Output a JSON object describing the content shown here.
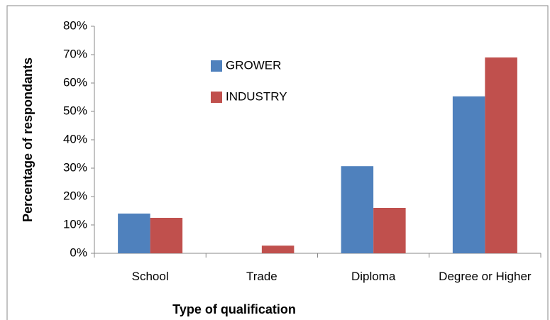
{
  "chart_data": {
    "type": "bar",
    "xlabel": "Type of qualification",
    "ylabel": "Percentage of respondants",
    "categories": [
      "School",
      "Trade",
      "Diploma",
      "Degree or Higher"
    ],
    "series": [
      {
        "name": "GROWER",
        "color": "#4f81bd",
        "values": [
          14,
          0,
          30.7,
          55.3
        ]
      },
      {
        "name": "INDUSTRY",
        "color": "#c0504d",
        "values": [
          12.5,
          2.7,
          16,
          69
        ]
      }
    ],
    "ylim": [
      0,
      80
    ],
    "yticks": [
      {
        "value": 0,
        "label": "0%"
      },
      {
        "value": 10,
        "label": "10%"
      },
      {
        "value": 20,
        "label": "20%"
      },
      {
        "value": 30,
        "label": "30%"
      },
      {
        "value": 40,
        "label": "40%"
      },
      {
        "value": 50,
        "label": "50%"
      },
      {
        "value": 60,
        "label": "60%"
      },
      {
        "value": 70,
        "label": "70%"
      },
      {
        "value": 80,
        "label": "80%"
      }
    ],
    "legend": "top-left"
  }
}
